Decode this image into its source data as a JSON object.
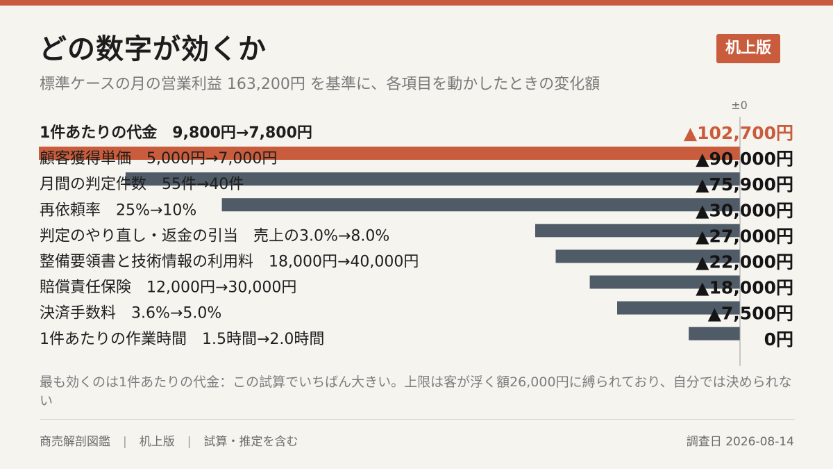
{
  "header": {
    "title": "どの数字が効くか",
    "badge": "机上版",
    "subtitle": "標準ケースの月の営業利益 163,200円 を基準に、各項目を動かしたときの変化額"
  },
  "colors": {
    "accent": "#c95c3c",
    "bar": "#4f5b66",
    "background": "#f6f4ef"
  },
  "chart_data": {
    "type": "bar",
    "orientation": "horizontal",
    "zero_label": "±0",
    "unit": "円",
    "xlim": [
      -102700,
      0
    ],
    "rows": [
      {
        "label": "1件あたりの代金　9,800円→7,800円",
        "value": -102700,
        "value_label": "▲102,700円",
        "highlight": true
      },
      {
        "label": "顧客獲得単価　5,000円→7,000円",
        "value": -90000,
        "value_label": "▲90,000円",
        "highlight": false
      },
      {
        "label": "月間の判定件数　55件→40件",
        "value": -75900,
        "value_label": "▲75,900円",
        "highlight": false
      },
      {
        "label": "再依頼率　25%→10%",
        "value": -30000,
        "value_label": "▲30,000円",
        "highlight": false
      },
      {
        "label": "判定のやり直し・返金の引当　売上の3.0%→8.0%",
        "value": -27000,
        "value_label": "▲27,000円",
        "highlight": false
      },
      {
        "label": "整備要領書と技術情報の利用料　18,000円→40,000円",
        "value": -22000,
        "value_label": "▲22,000円",
        "highlight": false
      },
      {
        "label": "賠償責任保険　12,000円→30,000円",
        "value": -18000,
        "value_label": "▲18,000円",
        "highlight": false
      },
      {
        "label": "決済手数料　3.6%→5.0%",
        "value": -7500,
        "value_label": "▲7,500円",
        "highlight": false
      },
      {
        "label": "1件あたりの作業時間　1.5時間→2.0時間",
        "value": 0,
        "value_label": "0円",
        "highlight": false
      }
    ]
  },
  "note": "最も効くのは1件あたりの代金：この試算でいちばん大きい。上限は客が浮く額26,000円に縛られており、自分では決められない",
  "footer": {
    "source": "商売解剖図鑑",
    "edition": "机上版",
    "disclaimer": "試算・推定を含む",
    "date": "調査日 2026-08-14"
  }
}
